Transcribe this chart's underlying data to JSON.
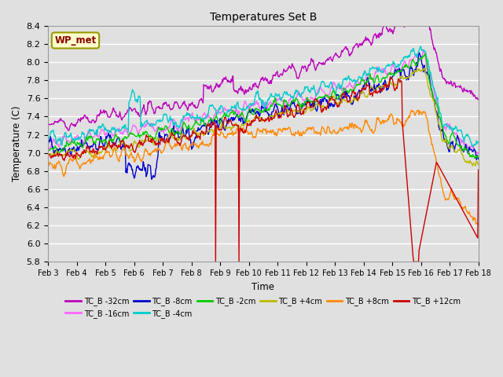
{
  "title": "Temperatures Set B",
  "xlabel": "Time",
  "ylabel": "Temperature (C)",
  "ylim": [
    5.8,
    8.4
  ],
  "xlim": [
    0,
    360
  ],
  "x_tick_labels": [
    "Feb 3",
    "Feb 4",
    "Feb 5",
    "Feb 6",
    "Feb 7",
    "Feb 8",
    "Feb 9",
    "Feb 10",
    "Feb 11",
    "Feb 12",
    "Feb 13",
    "Feb 14",
    "Feb 15",
    "Feb 16",
    "Feb 17",
    "Feb 18"
  ],
  "x_tick_positions": [
    0,
    24,
    48,
    72,
    96,
    120,
    144,
    168,
    192,
    216,
    240,
    264,
    288,
    312,
    336,
    360
  ],
  "wp_met_label": "WP_met",
  "series": [
    {
      "label": "TC_B -32cm",
      "color": "#bb00bb"
    },
    {
      "label": "TC_B -16cm",
      "color": "#ff66ff"
    },
    {
      "label": "TC_B -8cm",
      "color": "#0000cc"
    },
    {
      "label": "TC_B -4cm",
      "color": "#00cccc"
    },
    {
      "label": "TC_B -2cm",
      "color": "#00cc00"
    },
    {
      "label": "TC_B +4cm",
      "color": "#bbbb00"
    },
    {
      "label": "TC_B +8cm",
      "color": "#ff8800"
    },
    {
      "label": "TC_B +12cm",
      "color": "#cc0000"
    }
  ],
  "bg_color": "#e0e0e0",
  "plot_bg_color": "#e0e0e0",
  "grid_color": "#ffffff",
  "linewidth": 1.0
}
